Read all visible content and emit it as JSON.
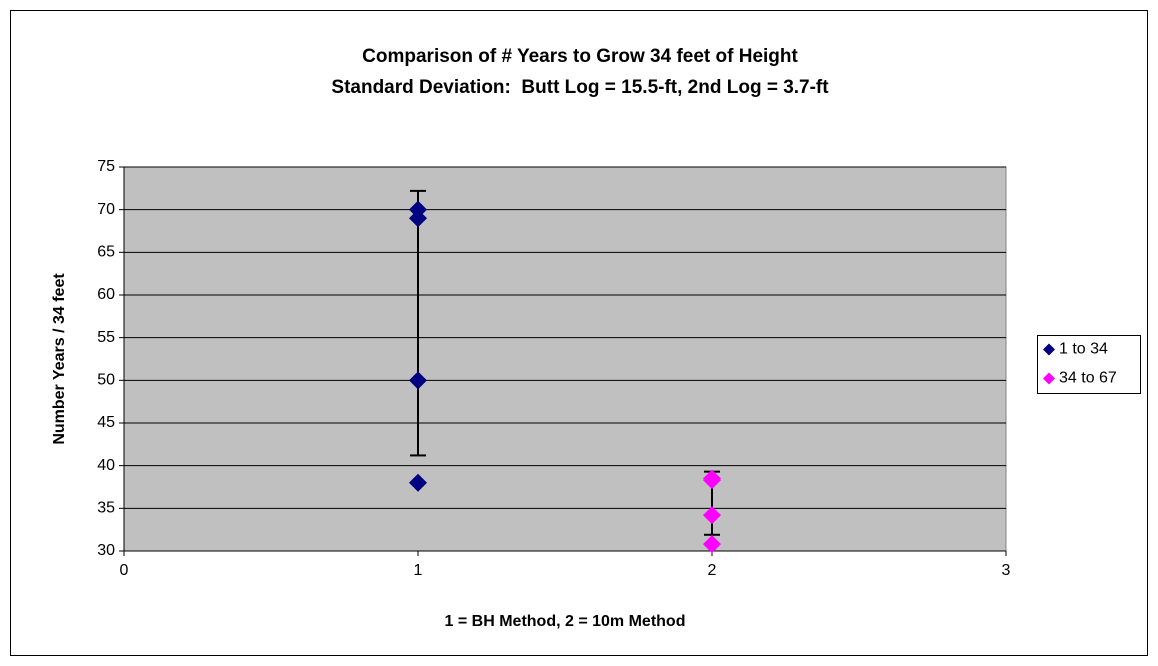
{
  "chart_data": {
    "type": "scatter",
    "title": "Comparison of # Years to Grow 34 feet of Height",
    "subtitle": "Standard Deviation:  Butt Log = 15.5-ft, 2nd Log = 3.7-ft",
    "xlabel": "1 = BH Method, 2 = 10m Method",
    "ylabel": "Number Years / 34 feet",
    "xlim": [
      0,
      3
    ],
    "xticks": [
      0,
      1,
      2,
      3
    ],
    "ylim": [
      30,
      75
    ],
    "yticks": [
      30,
      35,
      40,
      45,
      50,
      55,
      60,
      65,
      70,
      75
    ],
    "grid": true,
    "plot_background": "#c0c0c0",
    "legend": "right",
    "series": [
      {
        "name": "1 to 34",
        "color": "#000080",
        "x": [
          1,
          1,
          1,
          1
        ],
        "values": [
          70,
          69,
          50,
          38
        ],
        "error_bar": {
          "x": 1,
          "value": 56.7,
          "error": 15.5
        }
      },
      {
        "name": "34 to 67",
        "color": "#ff00ff",
        "x": [
          2,
          2,
          2,
          2
        ],
        "values": [
          38.5,
          38.3,
          34.2,
          30.8
        ],
        "error_bar": {
          "x": 2,
          "value": 35.6,
          "error": 3.7
        }
      }
    ]
  }
}
